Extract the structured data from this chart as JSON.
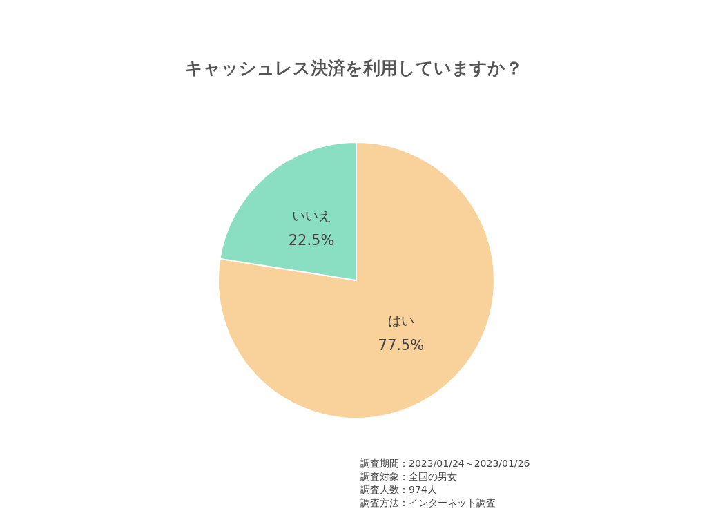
{
  "chart_data": {
    "type": "pie",
    "title": "キャッシュレス決済を利用していますか？",
    "categories": [
      "はい",
      "いいえ"
    ],
    "values": [
      77.5,
      22.5
    ],
    "value_labels": [
      "77.5%",
      "22.5%"
    ],
    "colors": [
      "#f9d19a",
      "#8adfc3"
    ],
    "legend": false,
    "annotations": [
      "調査期間：2023/01/24～2023/01/26",
      "調査対象：全国の男女",
      "調査人数：974人",
      "調査方法：インターネット調査"
    ]
  }
}
